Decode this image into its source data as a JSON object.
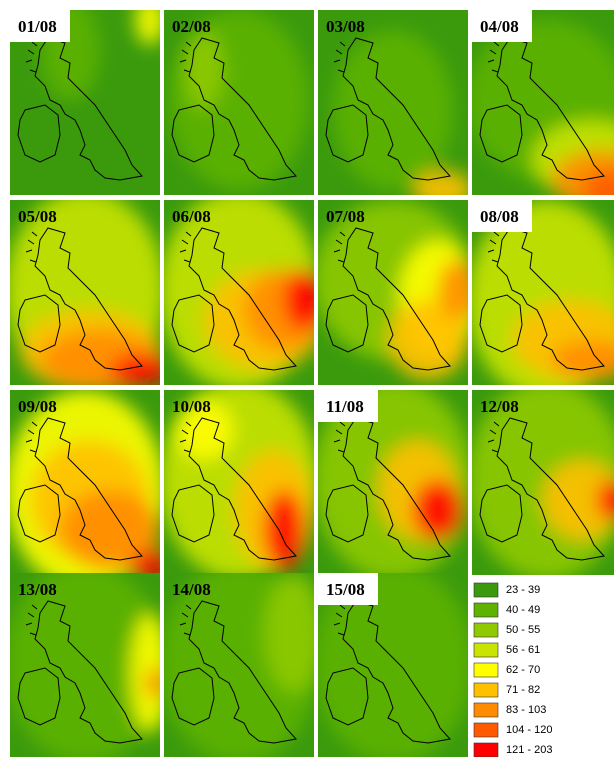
{
  "panels": [
    {
      "label": "01/08"
    },
    {
      "label": "02/08"
    },
    {
      "label": "03/08"
    },
    {
      "label": "04/08"
    },
    {
      "label": "05/08"
    },
    {
      "label": "06/08"
    },
    {
      "label": "07/08"
    },
    {
      "label": "08/08"
    },
    {
      "label": "09/08"
    },
    {
      "label": "10/08"
    },
    {
      "label": "11/08"
    },
    {
      "label": "12/08"
    },
    {
      "label": "13/08"
    },
    {
      "label": "14/08"
    },
    {
      "label": "15/08"
    }
  ],
  "legend": {
    "items": [
      {
        "label": "23 - 39",
        "color": "#3a9a0c"
      },
      {
        "label": "40 - 49",
        "color": "#5db300"
      },
      {
        "label": "50 - 55",
        "color": "#8fca00"
      },
      {
        "label": "56 - 61",
        "color": "#c9e400"
      },
      {
        "label": "62 - 70",
        "color": "#ffff00"
      },
      {
        "label": "71 - 82",
        "color": "#ffc000"
      },
      {
        "label": "83 - 103",
        "color": "#ff8c00"
      },
      {
        "label": "104 - 120",
        "color": "#ff5a00"
      },
      {
        "label": "121 - 203",
        "color": "#ff0000"
      }
    ]
  }
}
